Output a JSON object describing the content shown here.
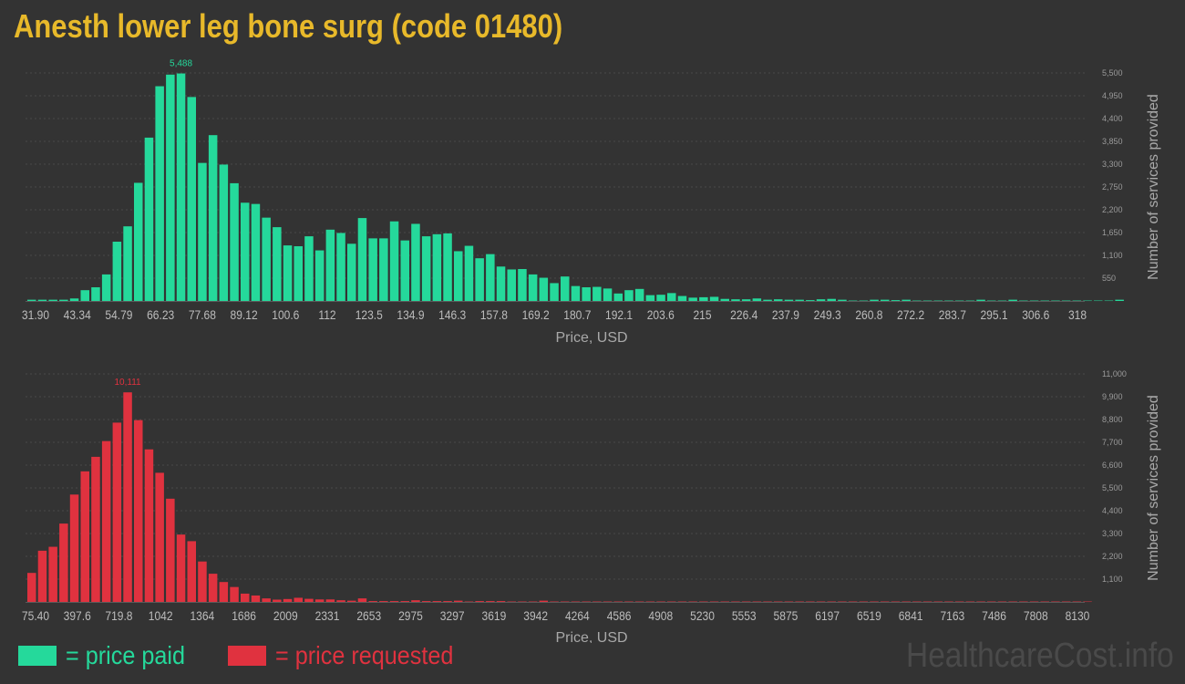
{
  "title": "Anesth lower leg bone surg (code 01480)",
  "colors": {
    "background": "#333333",
    "title": "#e8b92a",
    "paid": "#25d99b",
    "requested": "#e0323f",
    "watermark": "#4a4a4a"
  },
  "legend": {
    "paid_label": "= price paid",
    "requested_label": "= price requested"
  },
  "watermark": "HealthcareCost.info",
  "chart_data": [
    {
      "type": "bar",
      "name": "price paid",
      "xlabel": "Price, USD",
      "ylabel": "Number of services provided",
      "ylim": [
        0,
        5500
      ],
      "y_ticks": [
        "550",
        "1,100",
        "1,650",
        "2,200",
        "2,750",
        "3,300",
        "3,850",
        "4,400",
        "4,950",
        "5,500"
      ],
      "x_tick_labels": [
        "31.90",
        "43.34",
        "54.79",
        "66.23",
        "77.68",
        "89.12",
        "100.6",
        "112",
        "123.5",
        "134.9",
        "146.3",
        "157.8",
        "169.2",
        "180.7",
        "192.1",
        "203.6",
        "215",
        "226.4",
        "237.9",
        "249.3",
        "260.8",
        "272.2",
        "283.7",
        "295.1",
        "306.6",
        "318"
      ],
      "x_range": [
        31.9,
        318
      ],
      "peak_label": "5,488",
      "values": [
        30,
        30,
        30,
        30,
        60,
        260,
        330,
        640,
        1430,
        1800,
        2850,
        3940,
        5180,
        5460,
        5488,
        4920,
        3330,
        4000,
        3290,
        2840,
        2370,
        2340,
        2010,
        1780,
        1340,
        1320,
        1560,
        1220,
        1720,
        1640,
        1380,
        2000,
        1510,
        1510,
        1920,
        1460,
        1860,
        1560,
        1610,
        1630,
        1200,
        1330,
        1030,
        1130,
        830,
        760,
        770,
        640,
        560,
        430,
        590,
        360,
        330,
        340,
        300,
        180,
        260,
        290,
        140,
        150,
        190,
        120,
        80,
        90,
        100,
        50,
        40,
        40,
        60,
        30,
        40,
        30,
        30,
        20,
        40,
        50,
        30,
        10,
        10,
        30,
        30,
        20,
        30,
        10,
        10,
        10,
        10,
        10,
        10,
        30,
        10,
        10,
        30,
        10,
        10,
        10,
        10,
        10,
        10,
        10,
        10,
        10,
        30
      ]
    },
    {
      "type": "bar",
      "name": "price requested",
      "xlabel": "Price, USD",
      "ylabel": "Number of services provided",
      "ylim": [
        0,
        11000
      ],
      "y_ticks": [
        "1,100",
        "2,200",
        "3,300",
        "4,400",
        "5,500",
        "6,600",
        "7,700",
        "8,800",
        "9,900",
        "11,000"
      ],
      "x_tick_labels": [
        "75.40",
        "397.6",
        "719.8",
        "1042",
        "1364",
        "1686",
        "2009",
        "2331",
        "2653",
        "2975",
        "3297",
        "3619",
        "3942",
        "4264",
        "4586",
        "4908",
        "5230",
        "5553",
        "5875",
        "6197",
        "6519",
        "6841",
        "7163",
        "7486",
        "7808",
        "8130"
      ],
      "x_range": [
        75.4,
        8130
      ],
      "peak_label": "10,111",
      "values": [
        1400,
        2470,
        2660,
        3780,
        5180,
        6300,
        7000,
        7760,
        8650,
        10111,
        8770,
        7360,
        6230,
        4980,
        3250,
        2930,
        1950,
        1360,
        960,
        720,
        400,
        310,
        170,
        110,
        140,
        200,
        150,
        120,
        120,
        80,
        60,
        170,
        40,
        40,
        40,
        40,
        80,
        40,
        40,
        40,
        60,
        20,
        40,
        40,
        40,
        20,
        20,
        20,
        60,
        20,
        20,
        20,
        20,
        20,
        20,
        20,
        20,
        20,
        20,
        20,
        20,
        20,
        20,
        20,
        20,
        20,
        20,
        20,
        20,
        20,
        20,
        20,
        20,
        20,
        20,
        20,
        20,
        20,
        20,
        20,
        20,
        20,
        20,
        20,
        20,
        20,
        20,
        20,
        20,
        20,
        20,
        20,
        20,
        20,
        20,
        20,
        20,
        20,
        20,
        20
      ]
    }
  ]
}
